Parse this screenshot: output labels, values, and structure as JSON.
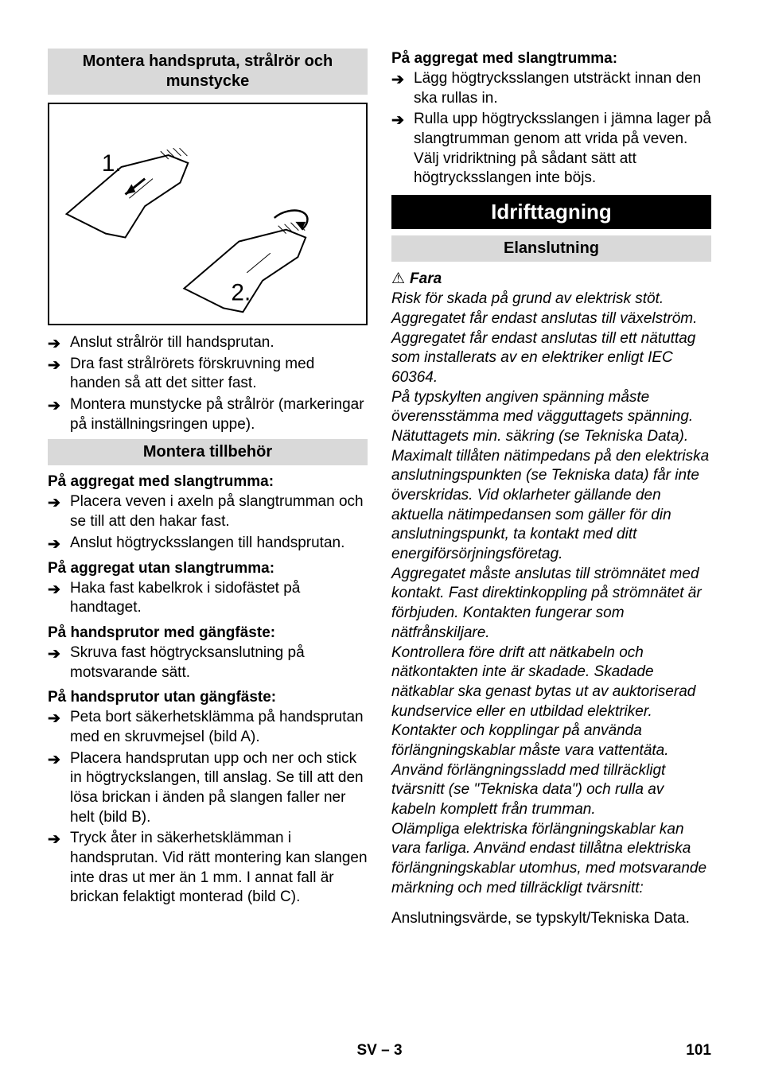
{
  "left": {
    "section1_title": "Montera handspruta, strålrör och munstycke",
    "figure": {
      "label1": "1.",
      "label2": "2."
    },
    "list1": [
      "Anslut strålrör till handsprutan.",
      "Dra fast strålrörets förskruvning med handen så att det sitter fast.",
      "Montera munstycke på strålrör (markeringar på inställningsringen uppe)."
    ],
    "section2_title": "Montera tillbehör",
    "sub1": "På aggregat med slangtrumma:",
    "list2": [
      "Placera veven i axeln på slangtrumman och se till att den hakar fast.",
      "Anslut högtrycksslangen till handsprutan."
    ],
    "sub2": "På aggregat utan slangtrumma:",
    "list3": [
      "Haka fast kabelkrok i sidofästet på handtaget."
    ],
    "sub3": "På handsprutor med gängfäste:",
    "list4": [
      "Skruva fast högtrycksanslutning på motsvarande sätt."
    ],
    "sub4": "På handsprutor utan gängfäste:",
    "list5": [
      "Peta bort säkerhetsklämma på handsprutan med en skruvmejsel (bild A).",
      "Placera handsprutan upp och ner och stick in högtryckslangen, till anslag. Se till att den lösa brickan i änden på slangen faller ner helt (bild B).",
      "Tryck åter in säkerhetsklämman i handsprutan. Vid rätt montering kan slangen inte dras ut mer än 1 mm. I annat fall är brickan felaktigt monterad (bild C)."
    ]
  },
  "right": {
    "sub1": "På aggregat med slangtrumma:",
    "list1": [
      "Lägg högtrycksslangen utsträckt innan den ska rullas in.",
      "Rulla upp högtrycksslangen i jämna lager på slangtrumman genom att vrida på veven. Välj vridriktning på sådant sätt att högtrycksslangen inte böjs."
    ],
    "black_title": "Idrifttagning",
    "section_title": "Elanslutning",
    "danger_label": "Fara",
    "danger_text": "Risk för skada på grund av elektrisk stöt. Aggregatet får endast anslutas till växelström.\nAggregatet får endast anslutas till ett nätuttag som installerats av en elektriker enligt IEC 60364.\nPå typskylten angiven spänning måste överensstämma med vägguttagets spänning.\nNätuttagets min. säkring (se Tekniska Data). Maximalt tillåten nätimpedans på den elektriska anslutningspunkten (se Tekniska data) får inte överskridas. Vid oklarheter gällande den aktuella nätimpedansen som gäller för din anslutningspunkt, ta kontakt med ditt energiförsörjningsföretag.\nAggregatet måste anslutas till strömnätet med kontakt. Fast direktinkoppling på strömnätet är förbjuden. Kontakten fungerar som nätfrånskiljare.\nKontrollera före drift att nätkabeln och nätkontakten inte är skadade. Skadade nätkablar ska genast bytas ut av auktoriserad kundservice eller en utbildad elektriker.\nKontakter och kopplingar på använda förlängningskablar måste vara vattentäta.\nAnvänd förlängningssladd med tillräckligt tvärsnitt (se \"Tekniska data\") och rulla av kabeln komplett från trumman.\nOlämpliga elektriska förlängningskablar kan vara farliga. Använd endast tillåtna elektriska förlängningskablar utomhus, med motsvarande märkning och med tillräckligt tvärsnitt:",
    "plain_text": "Anslutningsvärde, se typskylt/Tekniska Data."
  },
  "footer": {
    "center": "SV – 3",
    "page": "101"
  },
  "colors": {
    "grey_head": "#d9d9d9",
    "black": "#000000",
    "white": "#ffffff"
  }
}
